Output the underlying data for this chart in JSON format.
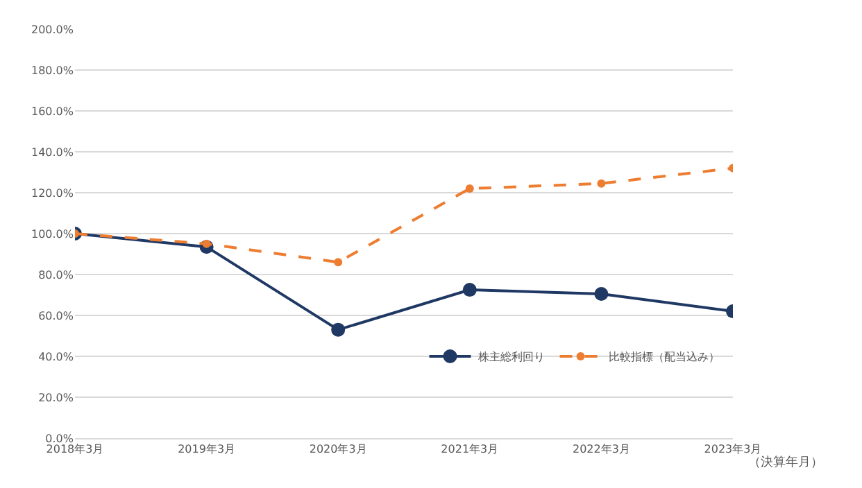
{
  "chart_data": {
    "type": "line",
    "xlabel": "（決算年月）",
    "categories": [
      "2018年3月",
      "2019年3月",
      "2020年3月",
      "2021年3月",
      "2022年3月",
      "2023年3月"
    ],
    "series": [
      {
        "name": "株主総利回り",
        "color": "#1f3864",
        "line_style": "solid",
        "values": [
          100,
          93.5,
          53,
          72.5,
          70.5,
          62
        ]
      },
      {
        "name": "比較指標（配当込み）",
        "color": "#ed7d31",
        "line_style": "dashed",
        "values": [
          100,
          95,
          86,
          122,
          124.5,
          132
        ]
      }
    ],
    "ylim": [
      0,
      200
    ],
    "yticks": [
      {
        "value": 0,
        "label": "0.0%"
      },
      {
        "value": 20,
        "label": "20.0%"
      },
      {
        "value": 40,
        "label": "40.0%"
      },
      {
        "value": 60,
        "label": "60.0%"
      },
      {
        "value": 80,
        "label": "80.0%"
      },
      {
        "value": 100,
        "label": "100.0%"
      },
      {
        "value": 120,
        "label": "120.0%"
      },
      {
        "value": 140,
        "label": "140.0%"
      },
      {
        "value": 160,
        "label": "160.0%"
      },
      {
        "value": 180,
        "label": "180.0%"
      },
      {
        "value": 200,
        "label": "200.0%"
      }
    ],
    "grid": "y",
    "legend": "bottom right",
    "marker": "circle"
  }
}
